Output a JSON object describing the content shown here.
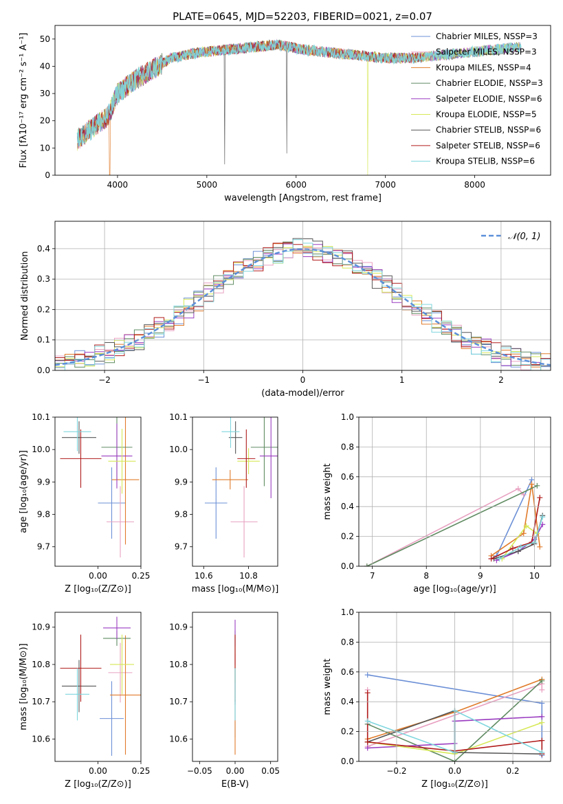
{
  "colors": [
    "#6b8fd6",
    "#e8a0c0",
    "#e07b2a",
    "#5e8a60",
    "#9a3cc0",
    "#d6e855",
    "#555555",
    "#b01a1a",
    "#7ed6de"
  ],
  "chart_data": [
    {
      "id": "spectrum",
      "type": "line",
      "title": "PLATE=0645, MJD=52203, FIBERID=0021, z=0.07",
      "xlabel": "wavelength [Angstrom, rest frame]",
      "ylabel": "Flux [fλ10⁻¹⁷ erg cm⁻² s⁻¹ A⁻¹]",
      "xlim": [
        3300,
        8850
      ],
      "ylim": [
        0,
        55
      ],
      "xticks": [
        "4000",
        "5000",
        "6000",
        "7000",
        "8000"
      ],
      "yticks": [
        "0",
        "10",
        "20",
        "30",
        "40",
        "50"
      ],
      "legend": [
        "Chabrier MILES, NSSP=3",
        "Salpeter MILES, NSSP=3",
        "Kroupa MILES, NSSP=4",
        "Chabrier ELODIE, NSSP=3",
        "Salpeter ELODIE, NSSP=6",
        "Kroupa ELODIE, NSSP=5",
        "Chabrier STELIB, NSSP=6",
        "Salpeter STELIB, NSSP=6",
        "Kroupa STELIB, NSSP=6"
      ],
      "continuum": {
        "x": [
          3550,
          3700,
          3900,
          4000,
          4200,
          4400,
          4600,
          4900,
          5200,
          5500,
          5800,
          6100,
          6400,
          6700,
          7000,
          7300,
          7600,
          7900,
          8200,
          8500
        ],
        "y": [
          13,
          17,
          22,
          30,
          35,
          39,
          43,
          45,
          46,
          47,
          48,
          46,
          45,
          44,
          43,
          43,
          44,
          45,
          46,
          47
        ]
      },
      "legend_position": "upper-right"
    },
    {
      "id": "residuals",
      "type": "histogram",
      "xlabel": "(data-model)/error",
      "ylabel": "Normed distribution",
      "xlim": [
        -2.5,
        2.5
      ],
      "ylim": [
        0,
        0.49
      ],
      "xticks": [
        "−2",
        "−1",
        "0",
        "1",
        "2"
      ],
      "yticks": [
        "0.0",
        "0.1",
        "0.2",
        "0.3",
        "0.4"
      ],
      "legend": [
        "𝒩(0, 1)"
      ],
      "legend_position": "upper-right",
      "grid": true
    },
    {
      "id": "age-vs-z",
      "type": "scatter",
      "xlabel": "Z [log₁₀(Z/Z⊙)]",
      "ylabel": "age  [log₁₀(age/yr)]",
      "xlim": [
        -0.25,
        0.25
      ],
      "ylim": [
        9.64,
        10.1
      ],
      "xticks": [
        "0.00",
        "0.25"
      ],
      "yticks": [
        "9.7",
        "9.8",
        "9.9",
        "10.0",
        "10.1"
      ],
      "points": [
        {
          "x": 0.08,
          "y": 9.835,
          "ex": 0.08,
          "ey": 0.11
        },
        {
          "x": 0.13,
          "y": 9.777,
          "ex": 0.08,
          "ey": 0.11
        },
        {
          "x": 0.16,
          "y": 9.907,
          "ex": 0.08,
          "ey": 0.2
        },
        {
          "x": 0.11,
          "y": 10.007,
          "ex": 0.09,
          "ey": 0.1
        },
        {
          "x": 0.11,
          "y": 9.98,
          "ex": 0.09,
          "ey": 0.1
        },
        {
          "x": 0.14,
          "y": 9.964,
          "ex": 0.08,
          "ey": 0.1
        },
        {
          "x": -0.11,
          "y": 10.037,
          "ex": 0.1,
          "ey": 0.05
        },
        {
          "x": -0.1,
          "y": 9.972,
          "ex": 0.12,
          "ey": 0.09
        },
        {
          "x": -0.12,
          "y": 10.055,
          "ex": 0.08,
          "ey": 0.06
        }
      ]
    },
    {
      "id": "age-vs-mass",
      "type": "scatter",
      "xlabel": "mass [log₁₀(M/M⊙)]",
      "ylabel": "",
      "xlim": [
        10.55,
        10.93
      ],
      "ylim": [
        9.64,
        10.1
      ],
      "xticks": [
        "10.6",
        "10.8"
      ],
      "yticks": [
        "9.7",
        "9.8",
        "9.9",
        "10.0",
        "10.1"
      ],
      "points": [
        {
          "x": 10.655,
          "y": 9.835,
          "ex": 0.05,
          "ey": 0.11
        },
        {
          "x": 10.78,
          "y": 9.777,
          "ex": 0.06,
          "ey": 0.11
        },
        {
          "x": 10.718,
          "y": 9.907,
          "ex": 0.08,
          "ey": 0.03
        },
        {
          "x": 10.87,
          "y": 10.007,
          "ex": 0.06,
          "ey": 0.12
        },
        {
          "x": 10.9,
          "y": 9.98,
          "ex": 0.05,
          "ey": 0.13
        },
        {
          "x": 10.8,
          "y": 9.964,
          "ex": 0.05,
          "ey": 0.04
        },
        {
          "x": 10.742,
          "y": 10.037,
          "ex": 0.03,
          "ey": 0.05
        },
        {
          "x": 10.79,
          "y": 9.972,
          "ex": 0.04,
          "ey": 0.09
        },
        {
          "x": 10.72,
          "y": 10.055,
          "ex": 0.04,
          "ey": 0.05
        }
      ]
    },
    {
      "id": "weight-vs-age",
      "type": "line",
      "xlabel": "age  [log₁₀(age/yr)]",
      "ylabel": "mass weight",
      "xlim": [
        6.75,
        10.3
      ],
      "ylim": [
        0,
        1.0
      ],
      "xticks": [
        "7",
        "8",
        "9",
        "10"
      ],
      "yticks": [
        "0.0",
        "0.2",
        "0.4",
        "0.6",
        "0.8",
        "1.0"
      ],
      "grid": true,
      "series": [
        {
          "x": [
            9.3,
            9.95
          ],
          "y": [
            0.07,
            0.58
          ]
        },
        {
          "x": [
            6.9,
            9.7,
            9.8
          ],
          "y": [
            0.0,
            0.52,
            0.48
          ]
        },
        {
          "x": [
            9.2,
            9.8,
            9.95,
            10.1
          ],
          "y": [
            0.07,
            0.22,
            0.55,
            0.13
          ]
        },
        {
          "x": [
            6.9,
            10.05
          ],
          "y": [
            0.0,
            0.54
          ]
        },
        {
          "x": [
            9.3,
            9.7,
            10.0,
            10.15
          ],
          "y": [
            0.04,
            0.1,
            0.18,
            0.28
          ]
        },
        {
          "x": [
            9.4,
            9.85,
            10.05
          ],
          "y": [
            0.05,
            0.27,
            0.22
          ]
        },
        {
          "x": [
            9.25,
            9.7,
            10.0,
            10.15
          ],
          "y": [
            0.05,
            0.1,
            0.15,
            0.34
          ]
        },
        {
          "x": [
            9.2,
            9.6,
            9.95,
            10.1
          ],
          "y": [
            0.05,
            0.12,
            0.16,
            0.46
          ]
        },
        {
          "x": [
            9.35,
            9.75,
            10.0,
            10.15
          ],
          "y": [
            0.05,
            0.13,
            0.16,
            0.33
          ]
        }
      ]
    },
    {
      "id": "mass-vs-z",
      "type": "scatter",
      "xlabel": "Z [log₁₀(Z/Z⊙)]",
      "ylabel": "mass [log₁₀(M/M⊙)]",
      "xlim": [
        -0.25,
        0.25
      ],
      "ylim": [
        10.54,
        10.94
      ],
      "xticks": [
        "0.00",
        "0.25"
      ],
      "yticks": [
        "10.6",
        "10.7",
        "10.8",
        "10.9"
      ],
      "points": [
        {
          "x": 0.08,
          "y": 10.655,
          "ex": 0.07,
          "ey": 0.1
        },
        {
          "x": 0.13,
          "y": 10.778,
          "ex": 0.07,
          "ey": 0.08
        },
        {
          "x": 0.16,
          "y": 10.718,
          "ex": 0.09,
          "ey": 0.16
        },
        {
          "x": 0.11,
          "y": 10.87,
          "ex": 0.08,
          "ey": 0.02
        },
        {
          "x": 0.11,
          "y": 10.898,
          "ex": 0.08,
          "ey": 0.03
        },
        {
          "x": 0.14,
          "y": 10.8,
          "ex": 0.07,
          "ey": 0.08
        },
        {
          "x": -0.11,
          "y": 10.742,
          "ex": 0.1,
          "ey": 0.07
        },
        {
          "x": -0.1,
          "y": 10.79,
          "ex": 0.12,
          "ey": 0.09
        },
        {
          "x": -0.12,
          "y": 10.72,
          "ex": 0.07,
          "ey": 0.07
        }
      ]
    },
    {
      "id": "mass-vs-ebv",
      "type": "scatter",
      "xlabel": "E(B-V)",
      "ylabel": "",
      "xlim": [
        -0.06,
        0.06
      ],
      "ylim": [
        10.54,
        10.94
      ],
      "xticks": [
        "−0.05",
        "0.00",
        "0.05"
      ],
      "yticks": [
        "10.6",
        "10.7",
        "10.8",
        "10.9"
      ],
      "points": [
        {
          "x": 0.0,
          "y": 10.655,
          "ex": 0,
          "ey": 0.05
        },
        {
          "x": 0.0,
          "y": 10.778,
          "ex": 0,
          "ey": 0.05
        },
        {
          "x": 0.0,
          "y": 10.718,
          "ex": 0,
          "ey": 0.16
        },
        {
          "x": 0.0,
          "y": 10.87,
          "ex": 0,
          "ey": 0.02
        },
        {
          "x": 0.0,
          "y": 10.86,
          "ex": 0,
          "ey": 0.06
        },
        {
          "x": 0.0,
          "y": 10.8,
          "ex": 0,
          "ey": 0.05
        },
        {
          "x": 0.0,
          "y": 10.742,
          "ex": 0,
          "ey": 0.05
        },
        {
          "x": 0.0,
          "y": 10.79,
          "ex": 0,
          "ey": 0.09
        },
        {
          "x": 0.0,
          "y": 10.72,
          "ex": 0,
          "ey": 0.07
        }
      ]
    },
    {
      "id": "weight-vs-z",
      "type": "line",
      "xlabel": "Z [log₁₀(Z/Z⊙)]",
      "ylabel": "mass weight",
      "xlim": [
        -0.33,
        0.33
      ],
      "ylim": [
        0,
        1.0
      ],
      "xticks": [
        "−0.2",
        "0.0",
        "0.2"
      ],
      "yticks": [
        "0.0",
        "0.2",
        "0.4",
        "0.6",
        "0.8",
        "1.0"
      ],
      "grid": true,
      "series": [
        {
          "x": [
            -0.3,
            0.3,
            0.3
          ],
          "y": [
            0.58,
            0.39,
            0.04
          ]
        },
        {
          "x": [
            -0.3,
            -0.3,
            0.3,
            0.3
          ],
          "y": [
            0.48,
            0.1,
            0.52,
            0.48
          ]
        },
        {
          "x": [
            -0.3,
            0.0,
            0.3
          ],
          "y": [
            0.15,
            0.33,
            0.55
          ]
        },
        {
          "x": [
            -0.3,
            0.0,
            0.3
          ],
          "y": [
            0.25,
            0.0,
            0.54
          ]
        },
        {
          "x": [
            -0.3,
            0.0,
            0.0,
            0.3
          ],
          "y": [
            0.09,
            0.12,
            0.27,
            0.3
          ]
        },
        {
          "x": [
            -0.3,
            0.0,
            0.3
          ],
          "y": [
            0.13,
            0.05,
            0.26
          ]
        },
        {
          "x": [
            -0.3,
            0.0,
            0.0,
            0.3
          ],
          "y": [
            0.13,
            0.34,
            0.06,
            0.05
          ]
        },
        {
          "x": [
            -0.3,
            -0.3,
            0.0,
            0.3,
            0.3
          ],
          "y": [
            0.46,
            0.13,
            0.07,
            0.14,
            0.05
          ]
        },
        {
          "x": [
            -0.3,
            0.0,
            0.0,
            0.3
          ],
          "y": [
            0.27,
            0.06,
            0.34,
            0.06
          ]
        }
      ]
    }
  ]
}
